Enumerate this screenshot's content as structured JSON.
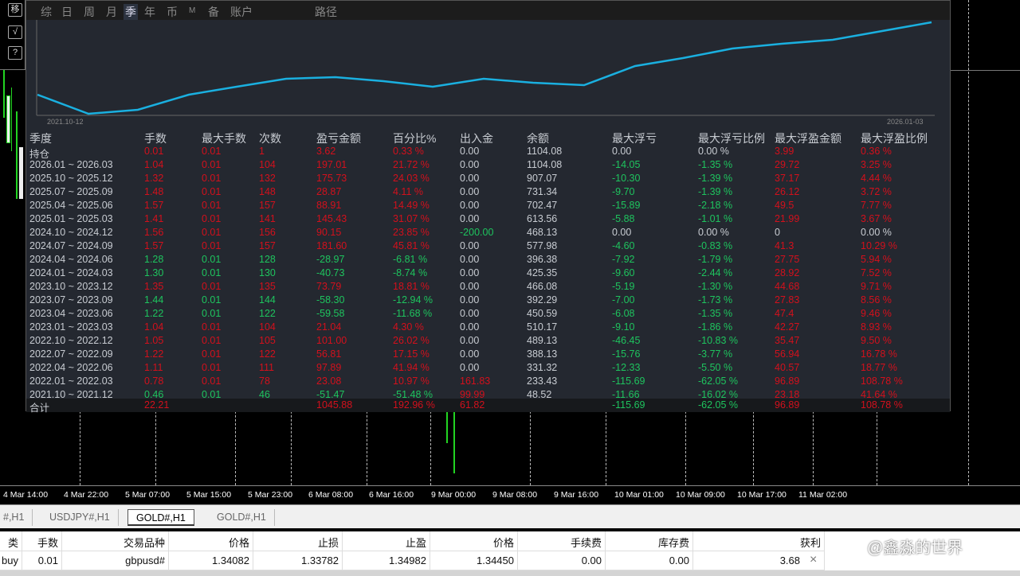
{
  "toolbar_left": [
    "移",
    "√",
    "?"
  ],
  "top_tabs": [
    "综",
    "日",
    "周",
    "月",
    "季",
    "年",
    "币",
    "M",
    "备",
    "账户",
    "路径"
  ],
  "active_tab": "季",
  "chart": {
    "start_date": "2021.10-12",
    "end_date": "2026.01-03",
    "line_color": "#1ab0e0"
  },
  "table": {
    "headers": [
      "季度",
      "手数",
      "最大手数",
      "次数",
      "盈亏金额",
      "百分比%",
      "出入金",
      "余额",
      "最大浮亏",
      "最大浮亏比例",
      "最大浮盈金额",
      "最大浮盈比例"
    ],
    "rows": [
      [
        "持仓",
        "0.01",
        "0.01",
        "1",
        "3.62",
        "0.33 %",
        "0.00",
        "1104.08",
        "0.00",
        "0.00 %",
        "3.99",
        "0.36 %"
      ],
      [
        "2026.01 ~ 2026.03",
        "1.04",
        "0.01",
        "104",
        "197.01",
        "21.72 %",
        "0.00",
        "1104.08",
        "-14.05",
        "-1.35 %",
        "29.72",
        "3.25 %"
      ],
      [
        "2025.10 ~ 2025.12",
        "1.32",
        "0.01",
        "132",
        "175.73",
        "24.03 %",
        "0.00",
        "907.07",
        "-10.30",
        "-1.39 %",
        "37.17",
        "4.44 %"
      ],
      [
        "2025.07 ~ 2025.09",
        "1.48",
        "0.01",
        "148",
        "28.87",
        "4.11 %",
        "0.00",
        "731.34",
        "-9.70",
        "-1.39 %",
        "26.12",
        "3.72 %"
      ],
      [
        "2025.04 ~ 2025.06",
        "1.57",
        "0.01",
        "157",
        "88.91",
        "14.49 %",
        "0.00",
        "702.47",
        "-15.89",
        "-2.18 %",
        "49.5",
        "7.77 %"
      ],
      [
        "2025.01 ~ 2025.03",
        "1.41",
        "0.01",
        "141",
        "145.43",
        "31.07 %",
        "0.00",
        "613.56",
        "-5.88",
        "-1.01 %",
        "21.99",
        "3.67 %"
      ],
      [
        "2024.10 ~ 2024.12",
        "1.56",
        "0.01",
        "156",
        "90.15",
        "23.85 %",
        "-200.00",
        "468.13",
        "0.00",
        "0.00 %",
        "0",
        "0.00 %"
      ],
      [
        "2024.07 ~ 2024.09",
        "1.57",
        "0.01",
        "157",
        "181.60",
        "45.81 %",
        "0.00",
        "577.98",
        "-4.60",
        "-0.83 %",
        "41.3",
        "10.29 %"
      ],
      [
        "2024.04 ~ 2024.06",
        "1.28",
        "0.01",
        "128",
        "-28.97",
        "-6.81 %",
        "0.00",
        "396.38",
        "-7.92",
        "-1.79 %",
        "27.75",
        "5.94 %"
      ],
      [
        "2024.01 ~ 2024.03",
        "1.30",
        "0.01",
        "130",
        "-40.73",
        "-8.74 %",
        "0.00",
        "425.35",
        "-9.60",
        "-2.44 %",
        "28.92",
        "7.52 %"
      ],
      [
        "2023.10 ~ 2023.12",
        "1.35",
        "0.01",
        "135",
        "73.79",
        "18.81 %",
        "0.00",
        "466.08",
        "-5.19",
        "-1.30 %",
        "44.68",
        "9.71 %"
      ],
      [
        "2023.07 ~ 2023.09",
        "1.44",
        "0.01",
        "144",
        "-58.30",
        "-12.94 %",
        "0.00",
        "392.29",
        "-7.00",
        "-1.73 %",
        "27.83",
        "8.56 %"
      ],
      [
        "2023.04 ~ 2023.06",
        "1.22",
        "0.01",
        "122",
        "-59.58",
        "-11.68 %",
        "0.00",
        "450.59",
        "-6.08",
        "-1.35 %",
        "47.4",
        "9.46 %"
      ],
      [
        "2023.01 ~ 2023.03",
        "1.04",
        "0.01",
        "104",
        "21.04",
        "4.30 %",
        "0.00",
        "510.17",
        "-9.10",
        "-1.86 %",
        "42.27",
        "8.93 %"
      ],
      [
        "2022.10 ~ 2022.12",
        "1.05",
        "0.01",
        "105",
        "101.00",
        "26.02 %",
        "0.00",
        "489.13",
        "-46.45",
        "-10.83 %",
        "35.47",
        "9.50 %"
      ],
      [
        "2022.07 ~ 2022.09",
        "1.22",
        "0.01",
        "122",
        "56.81",
        "17.15 %",
        "0.00",
        "388.13",
        "-15.76",
        "-3.77 %",
        "56.94",
        "16.78 %"
      ],
      [
        "2022.04 ~ 2022.06",
        "1.11",
        "0.01",
        "111",
        "97.89",
        "41.94 %",
        "0.00",
        "331.32",
        "-12.33",
        "-5.50 %",
        "40.57",
        "18.77 %"
      ],
      [
        "2022.01 ~ 2022.03",
        "0.78",
        "0.01",
        "78",
        "23.08",
        "10.97 %",
        "161.83",
        "233.43",
        "-115.69",
        "-62.05 %",
        "96.89",
        "108.78 %"
      ],
      [
        "2021.10 ~ 2021.12",
        "0.46",
        "0.01",
        "46",
        "-51.47",
        "-51.48 %",
        "99.99",
        "48.52",
        "-11.66",
        "-16.02 %",
        "23.18",
        "41.64 %"
      ]
    ],
    "total": [
      "合计",
      "22.21",
      "",
      "",
      "1045.88",
      "192.96 %",
      "61.82",
      "",
      "-115.69",
      "-62.05 %",
      "96.89",
      "108.78 %"
    ]
  },
  "time_axis": [
    "4 Mar 14:00",
    "4 Mar 22:00",
    "5 Mar 07:00",
    "5 Mar 15:00",
    "5 Mar 23:00",
    "6 Mar 08:00",
    "6 Mar 16:00",
    "9 Mar 00:00",
    "9 Mar 08:00",
    "9 Mar 16:00",
    "10 Mar 01:00",
    "10 Mar 09:00",
    "10 Mar 17:00",
    "11 Mar 02:00"
  ],
  "chart_tabs": [
    "#,H1",
    "USDJPY#,H1",
    "GOLD#,H1",
    "GOLD#,H1"
  ],
  "active_chart_tab": 2,
  "orders": {
    "headers": [
      "类型",
      "手数",
      "交易品种",
      "价格",
      "止损",
      "止盈",
      "价格",
      "手续费",
      "库存费",
      "获利"
    ],
    "row": [
      "buy",
      "0.01",
      "gbpusd#",
      "1.34082",
      "1.33782",
      "1.34982",
      "1.34450",
      "0.00",
      "0.00",
      "3.68"
    ],
    "close_icon": "×"
  },
  "watermark": "@鑫淼的世界",
  "colors": {
    "profit": "#d3101c",
    "loss": "#1ec45e",
    "neutral": "#c8ccd2"
  }
}
